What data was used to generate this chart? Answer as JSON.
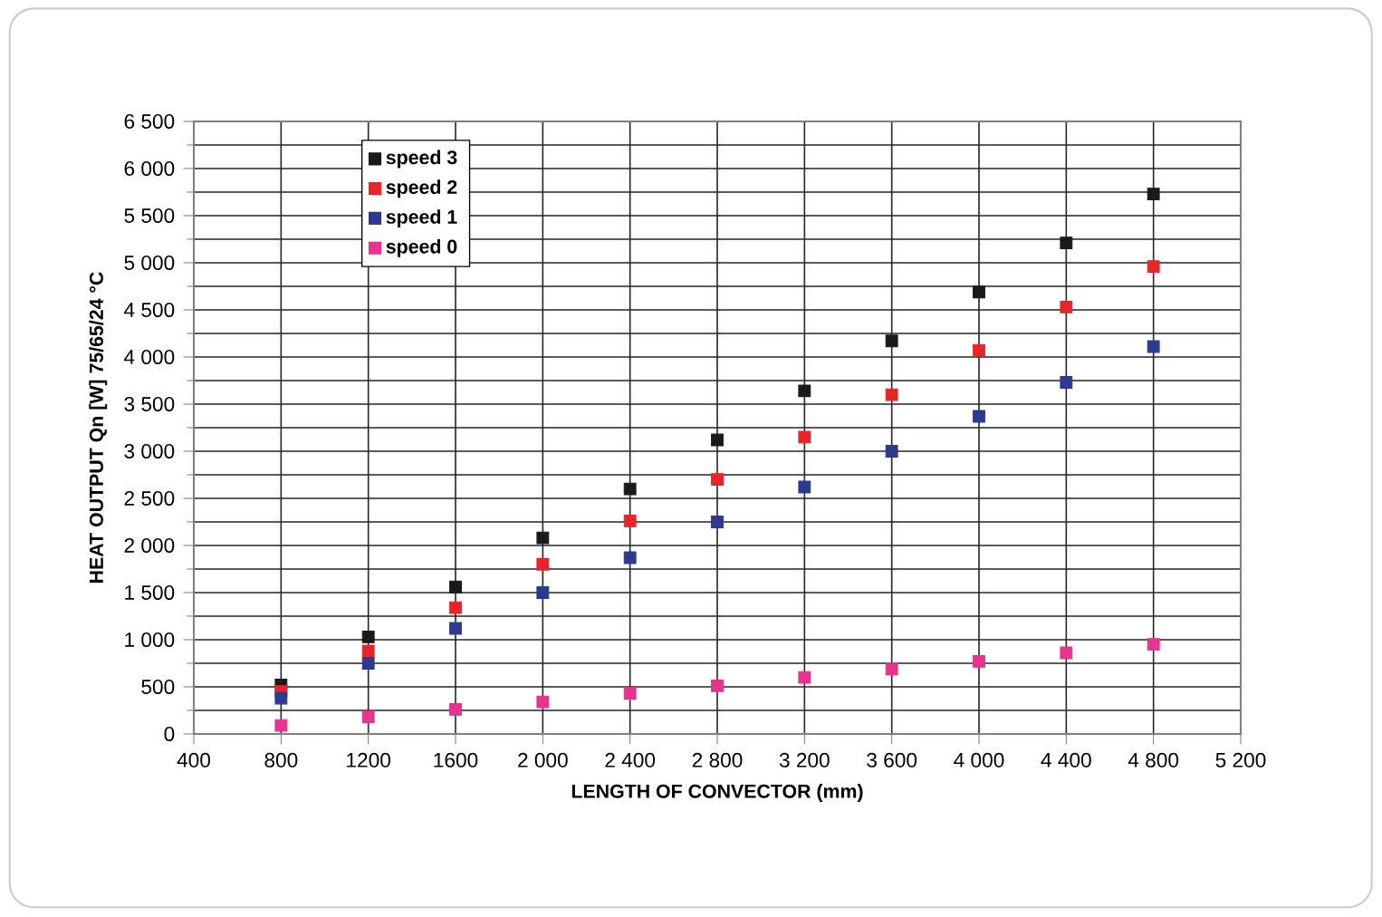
{
  "chart_data": {
    "type": "scatter",
    "xlabel": "LENGTH OF CONVECTOR (mm)",
    "ylabel": "HEAT OUTPUT Qn [W]  75/65/24 °C",
    "x": [
      800,
      1200,
      1600,
      2000,
      2400,
      2800,
      3200,
      3600,
      4000,
      4400,
      4800
    ],
    "series": [
      {
        "name": "speed 3",
        "color": "#1a1a1a",
        "values": [
          520,
          1030,
          1560,
          2080,
          2600,
          3120,
          3640,
          4170,
          4690,
          5210,
          5730
        ]
      },
      {
        "name": "speed 2",
        "color": "#e8262a",
        "values": [
          450,
          880,
          1340,
          1800,
          2260,
          2700,
          3150,
          3600,
          4070,
          4530,
          4960
        ]
      },
      {
        "name": "speed 1",
        "color": "#2e3a8f",
        "values": [
          380,
          750,
          1120,
          1500,
          1870,
          2250,
          2620,
          3000,
          3370,
          3730,
          4110
        ]
      },
      {
        "name": "speed 0",
        "color": "#e6338f",
        "values": [
          90,
          180,
          260,
          340,
          430,
          510,
          600,
          690,
          770,
          860,
          950
        ]
      }
    ],
    "xlim": [
      400,
      5200
    ],
    "xticks": [
      400,
      800,
      1200,
      1600,
      {
        "value": 2000,
        "label": "2 000"
      },
      {
        "value": 2400,
        "label": "2 400"
      },
      {
        "value": 2800,
        "label": "2 800"
      },
      {
        "value": 3200,
        "label": "3 200"
      },
      {
        "value": 3600,
        "label": "3 600"
      },
      {
        "value": 4000,
        "label": "4 000"
      },
      {
        "value": 4400,
        "label": "4 400"
      },
      {
        "value": 4800,
        "label": "4 800"
      },
      {
        "value": 5200,
        "label": "5 200"
      }
    ],
    "ylim": [
      0,
      6500
    ],
    "yticks": [
      0,
      500,
      {
        "value": 1000,
        "label": "1 000"
      },
      {
        "value": 1500,
        "label": "1 500"
      },
      {
        "value": 2000,
        "label": "2 000"
      },
      {
        "value": 2500,
        "label": "2 500"
      },
      {
        "value": 3000,
        "label": "3 000"
      },
      {
        "value": 3500,
        "label": "3 500"
      },
      {
        "value": 4000,
        "label": "4 000"
      },
      {
        "value": 4500,
        "label": "4 500"
      },
      {
        "value": 5000,
        "label": "5 000"
      },
      {
        "value": 5500,
        "label": "5 500"
      },
      {
        "value": 6000,
        "label": "6 000"
      },
      {
        "value": 6500,
        "label": "6 500"
      }
    ],
    "grid": true,
    "legend": "top left",
    "marker": "square"
  }
}
